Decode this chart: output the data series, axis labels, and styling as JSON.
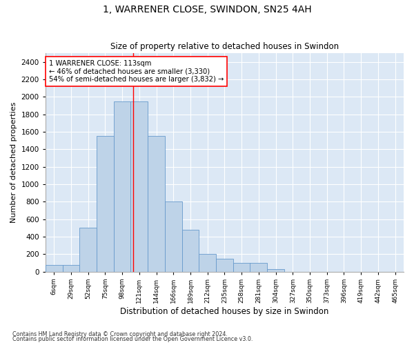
{
  "title_line1": "1, WARRENER CLOSE, SWINDON, SN25 4AH",
  "title_line2": "Size of property relative to detached houses in Swindon",
  "xlabel": "Distribution of detached houses by size in Swindon",
  "ylabel": "Number of detached properties",
  "categories": [
    "6sqm",
    "29sqm",
    "52sqm",
    "75sqm",
    "98sqm",
    "121sqm",
    "144sqm",
    "166sqm",
    "189sqm",
    "212sqm",
    "235sqm",
    "258sqm",
    "281sqm",
    "304sqm",
    "327sqm",
    "350sqm",
    "373sqm",
    "396sqm",
    "419sqm",
    "442sqm",
    "465sqm"
  ],
  "values": [
    75,
    75,
    500,
    1550,
    1950,
    1950,
    1550,
    800,
    480,
    200,
    145,
    100,
    100,
    25,
    0,
    0,
    0,
    0,
    0,
    0,
    0
  ],
  "bar_color": "#bed3e8",
  "bar_edge_color": "#6699cc",
  "red_line_x": 4.65,
  "annotation_text": "1 WARRENER CLOSE: 113sqm\n← 46% of detached houses are smaller (3,330)\n54% of semi-detached houses are larger (3,832) →",
  "annotation_box_color": "white",
  "annotation_box_edge": "red",
  "ylim": [
    0,
    2500
  ],
  "yticks": [
    0,
    200,
    400,
    600,
    800,
    1000,
    1200,
    1400,
    1600,
    1800,
    2000,
    2200,
    2400
  ],
  "background_color": "#dce8f5",
  "footer_line1": "Contains HM Land Registry data © Crown copyright and database right 2024.",
  "footer_line2": "Contains public sector information licensed under the Open Government Licence v3.0."
}
